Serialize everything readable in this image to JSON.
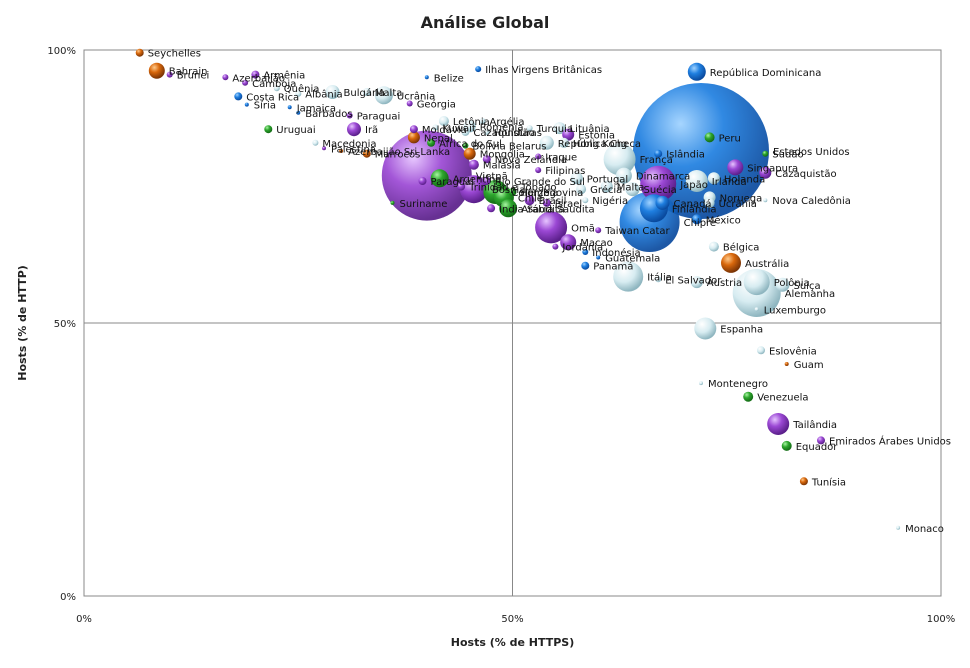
{
  "chart_data": {
    "type": "scatter",
    "title": "Análise Global",
    "xlabel": "Hosts (% de HTTPS)",
    "ylabel": "Hosts (% de HTTP)",
    "xlim": [
      0,
      100
    ],
    "ylim": [
      0,
      100
    ],
    "x_ticks": [
      "0%",
      "50%",
      "100%"
    ],
    "y_ticks": [
      "0%",
      "50%",
      "100%"
    ],
    "grid": true,
    "points": [
      {
        "label": "Seychelles",
        "x": 6.5,
        "y": 99.5,
        "r": 4,
        "color": "orange"
      },
      {
        "label": "Bahrain",
        "x": 8.5,
        "y": 96.2,
        "r": 8,
        "color": "orange"
      },
      {
        "label": "Brunei",
        "x": 10.0,
        "y": 95.5,
        "r": 3,
        "color": "purple"
      },
      {
        "label": "Azerbaijão",
        "x": 16.5,
        "y": 95.0,
        "r": 3,
        "color": "purple"
      },
      {
        "label": "Armênia",
        "x": 20.0,
        "y": 95.5,
        "r": 4,
        "color": "purple"
      },
      {
        "label": "Camboja",
        "x": 18.8,
        "y": 94.0,
        "r": 3,
        "color": "purple"
      },
      {
        "label": "Quênia",
        "x": 22.5,
        "y": 93.0,
        "r": 3,
        "color": "teal"
      },
      {
        "label": "Albânia",
        "x": 25.0,
        "y": 92.0,
        "r": 3,
        "color": "teal"
      },
      {
        "label": "Bulgária",
        "x": 29.0,
        "y": 92.3,
        "r": 7,
        "color": "teal"
      },
      {
        "label": "Malta",
        "x": 33.0,
        "y": 92.3,
        "r": 4,
        "color": "teal"
      },
      {
        "label": "Ucrânia",
        "x": 35.0,
        "y": 91.7,
        "r": 9,
        "color": "teal"
      },
      {
        "label": "Belize",
        "x": 40.0,
        "y": 95.0,
        "r": 2,
        "color": "blue"
      },
      {
        "label": "Ilhas Virgens Britânicas",
        "x": 46.0,
        "y": 96.5,
        "r": 3,
        "color": "blue"
      },
      {
        "label": "Costa Rica",
        "x": 18.0,
        "y": 91.5,
        "r": 4,
        "color": "blue"
      },
      {
        "label": "Jamaica",
        "x": 24.0,
        "y": 89.5,
        "r": 2,
        "color": "blue"
      },
      {
        "label": "Síria",
        "x": 19.0,
        "y": 90.0,
        "r": 2,
        "color": "blue"
      },
      {
        "label": "Barbados",
        "x": 25.0,
        "y": 88.5,
        "r": 2,
        "color": "blue"
      },
      {
        "label": "Geórgia",
        "x": 38.0,
        "y": 90.2,
        "r": 3,
        "color": "purple"
      },
      {
        "label": "Paraguai",
        "x": 31.0,
        "y": 88.0,
        "r": 3,
        "color": "purple"
      },
      {
        "label": "Letônia",
        "x": 42.0,
        "y": 87.0,
        "r": 5,
        "color": "teal"
      },
      {
        "label": "Romênia",
        "x": 45.0,
        "y": 86.0,
        "r": 6,
        "color": "teal"
      },
      {
        "label": "Argélia",
        "x": 46.5,
        "y": 87.0,
        "r": 3,
        "color": "teal"
      },
      {
        "label": "Uruguai",
        "x": 21.5,
        "y": 85.5,
        "r": 4,
        "color": "green"
      },
      {
        "label": "Irã",
        "x": 31.5,
        "y": 85.5,
        "r": 7,
        "color": "purple"
      },
      {
        "label": "Moldávia",
        "x": 38.5,
        "y": 85.5,
        "r": 4,
        "color": "purple"
      },
      {
        "label": "Kuwait",
        "x": 41.0,
        "y": 85.8,
        "r": 3,
        "color": "teal"
      },
      {
        "label": "Cazaquistão",
        "x": 44.5,
        "y": 85.0,
        "r": 4,
        "color": "teal"
      },
      {
        "label": "Honduras",
        "x": 47.0,
        "y": 85.0,
        "r": 3,
        "color": "teal"
      },
      {
        "label": "Turquia",
        "x": 52.0,
        "y": 85.7,
        "r": 3,
        "color": "teal"
      },
      {
        "label": "Lituânia",
        "x": 55.5,
        "y": 85.7,
        "r": 6,
        "color": "teal"
      },
      {
        "label": "Estônia",
        "x": 56.5,
        "y": 84.5,
        "r": 6,
        "color": "purple"
      },
      {
        "label": "Macedonia",
        "x": 27.0,
        "y": 83.0,
        "r": 3,
        "color": "teal"
      },
      {
        "label": "Palestina",
        "x": 28.0,
        "y": 82.0,
        "r": 2,
        "color": "purple"
      },
      {
        "label": "Azerbaijão Sri Lanka",
        "x": 30.0,
        "y": 81.5,
        "r": 2,
        "color": "orange"
      },
      {
        "label": "Marrocos",
        "x": 33.0,
        "y": 81.0,
        "r": 4,
        "color": "orange"
      },
      {
        "label": "Nepal",
        "x": 38.5,
        "y": 84.0,
        "r": 6,
        "color": "orange"
      },
      {
        "label": "África do Sul",
        "x": 40.5,
        "y": 83.0,
        "r": 4,
        "color": "green"
      },
      {
        "label": "Bolívia Belarus",
        "x": 44.5,
        "y": 82.5,
        "r": 3,
        "color": "green"
      },
      {
        "label": "Hong Kong",
        "x": 56.0,
        "y": 83.0,
        "r": 5,
        "color": "teal"
      },
      {
        "label": "República Checa",
        "x": 54.0,
        "y": 83.0,
        "r": 7,
        "color": "teal"
      },
      {
        "label": "República Dominicana",
        "x": 71.5,
        "y": 96.0,
        "r": 9,
        "color": "blue"
      },
      {
        "label": "Peru",
        "x": 73.0,
        "y": 84.0,
        "r": 5,
        "color": "green"
      },
      {
        "label": "Estados Unidos",
        "x": 72.0,
        "y": 81.5,
        "r": 68,
        "color": "blue"
      },
      {
        "label": "Sudão",
        "x": 79.5,
        "y": 81.0,
        "r": 3,
        "color": "green"
      },
      {
        "label": "Islândia",
        "x": 67.0,
        "y": 81.0,
        "r": 4,
        "color": "blue"
      },
      {
        "label": "Mongólia",
        "x": 45.0,
        "y": 81.0,
        "r": 6,
        "color": "orange"
      },
      {
        "label": "Nova Zelândia",
        "x": 47.0,
        "y": 80.0,
        "r": 4,
        "color": "purple"
      },
      {
        "label": "Malásia",
        "x": 45.5,
        "y": 79.0,
        "r": 5,
        "color": "purple"
      },
      {
        "label": "França",
        "x": 62.5,
        "y": 80.0,
        "r": 16,
        "color": "teal"
      },
      {
        "label": "Singapura",
        "x": 76.0,
        "y": 78.5,
        "r": 8,
        "color": "purple"
      },
      {
        "label": "Cazaquistão",
        "x": 79.5,
        "y": 77.5,
        "r": 6,
        "color": "purple"
      },
      {
        "label": "Filipinas",
        "x": 53.0,
        "y": 78.0,
        "r": 3,
        "color": "purple"
      },
      {
        "label": "Portugal",
        "x": 57.5,
        "y": 76.5,
        "r": 6,
        "color": "teal"
      },
      {
        "label": "Dinamarca",
        "x": 63.0,
        "y": 77.0,
        "r": 8,
        "color": "teal"
      },
      {
        "label": "Holanda",
        "x": 73.5,
        "y": 76.5,
        "r": 6,
        "color": "teal"
      },
      {
        "label": "Irlanda",
        "x": 71.5,
        "y": 76.0,
        "r": 11,
        "color": "teal"
      },
      {
        "label": "Japão",
        "x": 67.0,
        "y": 75.5,
        "r": 18,
        "color": "purple"
      },
      {
        "label": "Malta",
        "x": 61.0,
        "y": 75.0,
        "r": 6,
        "color": "teal"
      },
      {
        "label": "Suécia",
        "x": 64.0,
        "y": 74.5,
        "r": 7,
        "color": "teal"
      },
      {
        "label": "Grécia",
        "x": 58.0,
        "y": 74.5,
        "r": 5,
        "color": "teal"
      },
      {
        "label": "Vietnã",
        "x": 40.0,
        "y": 77.0,
        "r": 45,
        "color": "purple"
      },
      {
        "label": "Paraguai",
        "x": 39.5,
        "y": 76.0,
        "r": 4,
        "color": "purple"
      },
      {
        "label": "Argentina",
        "x": 41.5,
        "y": 76.5,
        "r": 9,
        "color": "green"
      },
      {
        "label": "Trinidad e Tobago",
        "x": 44.0,
        "y": 75.0,
        "r": 4,
        "color": "purple"
      },
      {
        "label": "Bósnia",
        "x": 45.5,
        "y": 74.5,
        "r": 14,
        "color": "purple"
      },
      {
        "label": "Rio Grande do Sul",
        "x": 47.0,
        "y": 76.0,
        "r": 4,
        "color": "purple"
      },
      {
        "label": "Colômbia",
        "x": 48.0,
        "y": 74.0,
        "r": 12,
        "color": "green"
      },
      {
        "label": "Chile",
        "x": 49.0,
        "y": 73.0,
        "r": 10,
        "color": "green"
      },
      {
        "label": "Herzegovina",
        "x": 50.0,
        "y": 74.0,
        "r": 4,
        "color": "green"
      },
      {
        "label": "Brasil",
        "x": 52.0,
        "y": 72.5,
        "r": 5,
        "color": "purple"
      },
      {
        "label": "Israel",
        "x": 54.0,
        "y": 72.0,
        "r": 4,
        "color": "purple"
      },
      {
        "label": "Iraque",
        "x": 53.0,
        "y": 80.5,
        "r": 3,
        "color": "purple"
      },
      {
        "label": "Arábia Saudita",
        "x": 49.5,
        "y": 71.0,
        "r": 9,
        "color": "green"
      },
      {
        "label": "Índia Saudita",
        "x": 47.5,
        "y": 71.0,
        "r": 4,
        "color": "purple"
      },
      {
        "label": "Nigéria",
        "x": 58.5,
        "y": 72.5,
        "r": 3,
        "color": "teal"
      },
      {
        "label": "Canadá",
        "x": 67.5,
        "y": 72.0,
        "r": 7,
        "color": "blue"
      },
      {
        "label": "Finlândia",
        "x": 66.5,
        "y": 71.0,
        "r": 14,
        "color": "blue"
      },
      {
        "label": "Noruega",
        "x": 73.0,
        "y": 73.0,
        "r": 6,
        "color": "teal"
      },
      {
        "label": "Ucrânia",
        "x": 73.0,
        "y": 72.0,
        "r": 5,
        "color": "teal"
      },
      {
        "label": "Nova Caledônia",
        "x": 79.5,
        "y": 72.5,
        "r": 2,
        "color": "teal"
      },
      {
        "label": "Chipre",
        "x": 66.0,
        "y": 68.5,
        "r": 30,
        "color": "blue"
      },
      {
        "label": "México",
        "x": 71.5,
        "y": 69.0,
        "r": 5,
        "color": "blue"
      },
      {
        "label": "Suriname",
        "x": 36.0,
        "y": 72.0,
        "r": 2,
        "color": "green"
      },
      {
        "label": "Omã",
        "x": 54.5,
        "y": 67.5,
        "r": 16,
        "color": "purple"
      },
      {
        "label": "Taiwan Catar",
        "x": 60.0,
        "y": 67.0,
        "r": 3,
        "color": "purple"
      },
      {
        "label": "Macao",
        "x": 56.5,
        "y": 64.8,
        "r": 8,
        "color": "purple"
      },
      {
        "label": "Jordânia",
        "x": 55.0,
        "y": 64.0,
        "r": 3,
        "color": "purple"
      },
      {
        "label": "Indonésia",
        "x": 58.5,
        "y": 63.0,
        "r": 3,
        "color": "blue"
      },
      {
        "label": "Guatemala",
        "x": 60.0,
        "y": 62.0,
        "r": 2,
        "color": "blue"
      },
      {
        "label": "Panamá",
        "x": 58.5,
        "y": 60.5,
        "r": 4,
        "color": "blue"
      },
      {
        "label": "Bélgica",
        "x": 73.5,
        "y": 64.0,
        "r": 5,
        "color": "teal"
      },
      {
        "label": "Austrália",
        "x": 75.5,
        "y": 61.0,
        "r": 10,
        "color": "orange"
      },
      {
        "label": "Itália",
        "x": 63.5,
        "y": 58.5,
        "r": 15,
        "color": "teal"
      },
      {
        "label": "El Salvador",
        "x": 67.0,
        "y": 58.0,
        "r": 3,
        "color": "teal"
      },
      {
        "label": "Áustria",
        "x": 71.5,
        "y": 57.5,
        "r": 6,
        "color": "teal"
      },
      {
        "label": "Polônia",
        "x": 78.5,
        "y": 57.5,
        "r": 13,
        "color": "teal"
      },
      {
        "label": "Suíça",
        "x": 81.5,
        "y": 57.0,
        "r": 7,
        "color": "teal"
      },
      {
        "label": "Alemanha",
        "x": 78.5,
        "y": 55.5,
        "r": 24,
        "color": "teal"
      },
      {
        "label": "Luxemburgo",
        "x": 78.5,
        "y": 52.5,
        "r": 2,
        "color": "teal"
      },
      {
        "label": "Espanha",
        "x": 72.5,
        "y": 49.0,
        "r": 11,
        "color": "teal"
      },
      {
        "label": "Eslovênia",
        "x": 79.0,
        "y": 45.0,
        "r": 4,
        "color": "teal"
      },
      {
        "label": "Guam",
        "x": 82.0,
        "y": 42.5,
        "r": 2,
        "color": "orange"
      },
      {
        "label": "Montenegro",
        "x": 72.0,
        "y": 39.0,
        "r": 2,
        "color": "teal"
      },
      {
        "label": "Venezuela",
        "x": 77.5,
        "y": 36.5,
        "r": 5,
        "color": "green"
      },
      {
        "label": "Tailândia",
        "x": 81.0,
        "y": 31.5,
        "r": 11,
        "color": "purple"
      },
      {
        "label": "Emirados Árabes Unidos",
        "x": 86.0,
        "y": 28.5,
        "r": 4,
        "color": "purple"
      },
      {
        "label": "Equador",
        "x": 82.0,
        "y": 27.5,
        "r": 5,
        "color": "green"
      },
      {
        "label": "Tunísia",
        "x": 84.0,
        "y": 21.0,
        "r": 4,
        "color": "orange"
      },
      {
        "label": "Monaco",
        "x": 95.0,
        "y": 12.5,
        "r": 2,
        "color": "teal"
      }
    ],
    "colors": {
      "blue": "#1a6fd6",
      "teal": "#cfe7ec",
      "purple": "#9b48d4",
      "green": "#2ea62e",
      "orange": "#d8670b"
    }
  }
}
